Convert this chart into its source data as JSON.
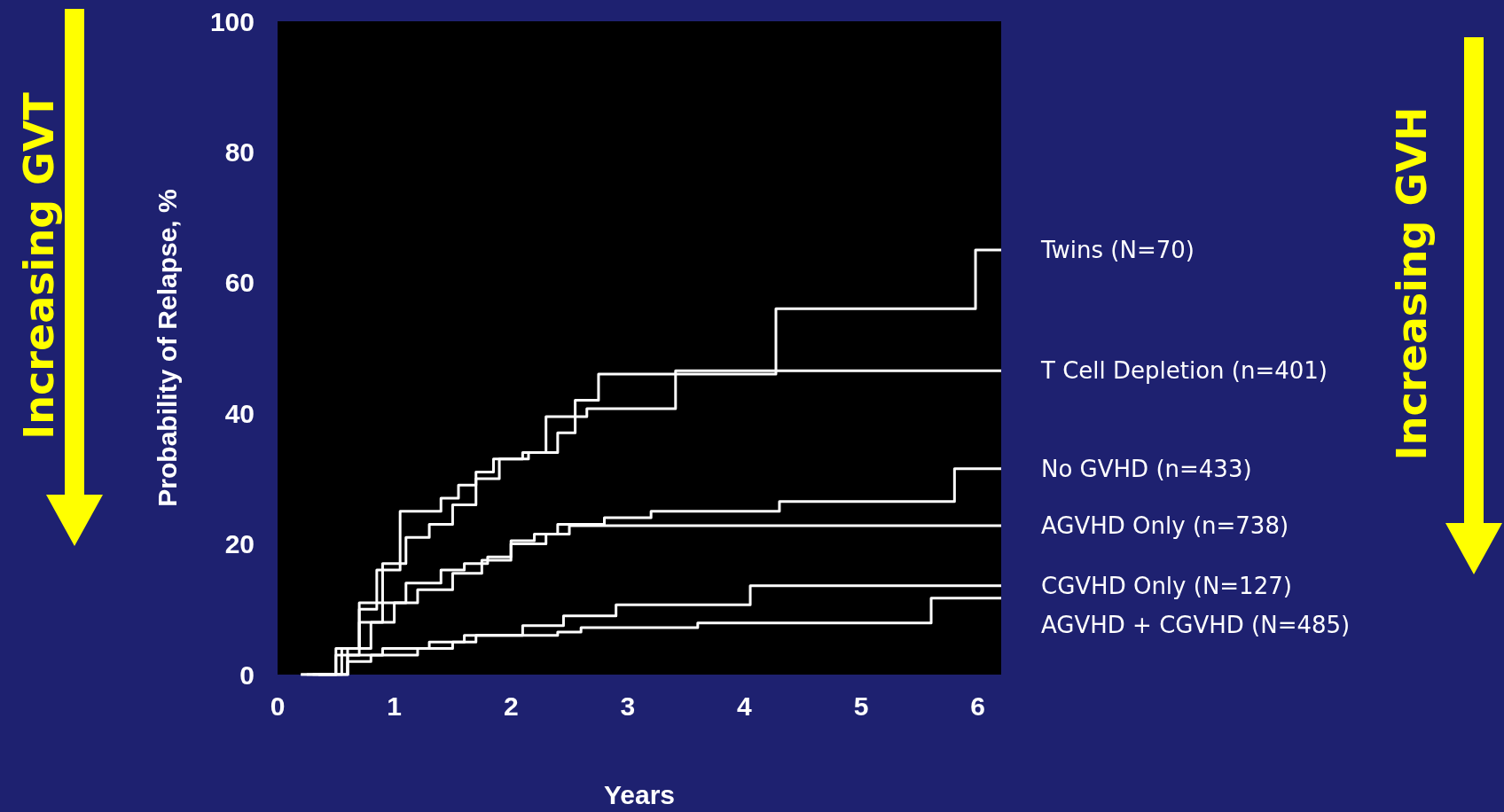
{
  "chart_data": {
    "type": "step",
    "xlabel": "Years",
    "ylabel": "Probability of Relapse, %",
    "xlim": [
      0,
      6.2
    ],
    "xticks": [
      0,
      1,
      2,
      3,
      4,
      5,
      6
    ],
    "ylim": [
      0,
      100
    ],
    "yticks": [
      0,
      20,
      40,
      60,
      80,
      100
    ],
    "grid": false,
    "legend": false,
    "marker": "none",
    "line_style": "solid",
    "annotations": [
      "Increasing GVT",
      "Increasing GVH"
    ],
    "series": [
      {
        "name": "Twins (N=70)",
        "color": "#ffffff",
        "x": [
          0.2,
          0.5,
          0.7,
          0.85,
          1.05,
          1.4,
          1.55,
          1.7,
          1.85,
          2.1,
          2.3,
          2.55,
          2.75,
          4.27,
          5.98,
          6.2
        ],
        "values": [
          0,
          3,
          10,
          16,
          25,
          27,
          29,
          31,
          33,
          34,
          39.5,
          42,
          46,
          56,
          65,
          65
        ]
      },
      {
        "name": "T Cell Depletion (n=401)",
        "color": "#ffffff",
        "x": [
          0.2,
          0.5,
          0.7,
          0.9,
          1.1,
          1.3,
          1.5,
          1.7,
          1.9,
          2.15,
          2.4,
          2.55,
          2.65,
          3.41,
          6.2
        ],
        "values": [
          0,
          4,
          11,
          17,
          21,
          23,
          26,
          30,
          33,
          34,
          37,
          39.5,
          40.7,
          46.5,
          46.5
        ]
      },
      {
        "name": "No GVHD (n=433)",
        "color": "#ffffff",
        "x": [
          0.25,
          0.55,
          0.7,
          0.9,
          1.1,
          1.4,
          1.6,
          1.8,
          2.0,
          2.2,
          2.4,
          2.8,
          3.2,
          4.3,
          5.8,
          6.2
        ],
        "values": [
          0,
          4,
          8,
          11,
          14,
          16,
          17,
          18,
          20.5,
          21.5,
          23,
          24,
          25,
          26.5,
          31.5,
          31.5
        ]
      },
      {
        "name": "AGVHD Only (n=738)",
        "color": "#ffffff",
        "x": [
          0.3,
          0.6,
          0.8,
          1.0,
          1.2,
          1.5,
          1.75,
          2.0,
          2.3,
          2.5,
          6.2
        ],
        "values": [
          0,
          4,
          8,
          11,
          13,
          15.5,
          17.5,
          20,
          21.5,
          22.8,
          22.8
        ]
      },
      {
        "name": "CGVHD Only (N=127)",
        "color": "#ffffff",
        "x": [
          0.35,
          0.6,
          0.9,
          1.3,
          1.6,
          2.1,
          2.45,
          2.9,
          4.05,
          6.2
        ],
        "values": [
          0,
          3,
          4,
          5,
          6,
          7.5,
          9,
          10.7,
          13.6,
          13.6
        ]
      },
      {
        "name": "AGVHD + CGVHD (N=485)",
        "color": "#ffffff",
        "x": [
          0.35,
          0.6,
          0.8,
          1.2,
          1.5,
          1.7,
          2.4,
          2.6,
          3.6,
          5.6,
          6.2
        ],
        "values": [
          0,
          2,
          3,
          4,
          5,
          6,
          6.5,
          7.2,
          7.9,
          11.7,
          11.7
        ]
      }
    ]
  }
}
